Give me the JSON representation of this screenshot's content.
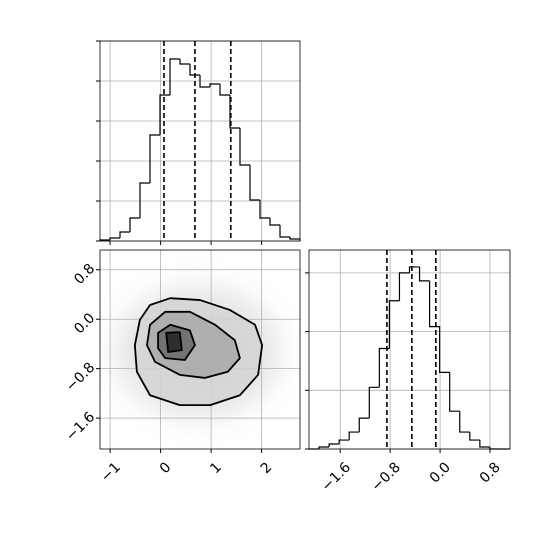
{
  "chart_data": [
    {
      "type": "histogram",
      "bins": [
        -1.2,
        -1.002,
        -0.804,
        -0.606,
        -0.408,
        -0.21,
        -0.012,
        0.186,
        0.384,
        0.582,
        0.78,
        0.978,
        1.176,
        1.374,
        1.572,
        1.77,
        1.968,
        2.166,
        2.364,
        2.562,
        2.76
      ],
      "counts": [
        1,
        3,
        9,
        23,
        58,
        106,
        146,
        182,
        177,
        166,
        154,
        157,
        146,
        113,
        76,
        41,
        23,
        16,
        4,
        2
      ],
      "quantiles": [
        0.067,
        0.68,
        1.39
      ],
      "xlim": [
        -1.2,
        2.76
      ],
      "ylim": [
        0,
        200
      ],
      "xticks": [
        -1,
        0,
        1,
        2
      ],
      "yticks": [
        0,
        40,
        80,
        120,
        160,
        200
      ],
      "tick_labels": false,
      "grid": true,
      "color": "#000000"
    },
    {
      "type": "contour",
      "xlim": [
        -1.2,
        2.76
      ],
      "ylim": [
        -2.1,
        1.12
      ],
      "xticks": [
        {
          "value": -1,
          "label": "−1"
        },
        0,
        1,
        2
      ],
      "yticks": [
        {
          "value": 0.8,
          "label": "0.8"
        },
        {
          "value": 0,
          "label": "0.0"
        },
        {
          "value": -0.8,
          "label": "−0.8"
        },
        {
          "value": -1.6,
          "label": "−1.6"
        }
      ],
      "tick_labels": true,
      "grid": true,
      "levels": [
        {
          "color": "#d4d4d4",
          "x": [
            -0.41,
            -0.21,
            0.19,
            0.78,
            1.37,
            1.87,
            2.01,
            1.93,
            1.57,
            0.98,
            0.38,
            -0.21,
            -0.47,
            -0.51
          ],
          "y": [
            -0.01,
            0.23,
            0.34,
            0.31,
            0.15,
            -0.09,
            -0.42,
            -0.9,
            -1.23,
            -1.39,
            -1.39,
            -1.23,
            -0.85,
            -0.42
          ]
        },
        {
          "color": "#a8a8a8",
          "x": [
            -0.21,
            0.09,
            0.58,
            1.08,
            1.47,
            1.57,
            1.33,
            0.88,
            0.38,
            -0.11,
            -0.27
          ],
          "y": [
            -0.09,
            0.12,
            0.12,
            -0.09,
            -0.34,
            -0.63,
            -0.85,
            -0.95,
            -0.9,
            -0.69,
            -0.42
          ]
        },
        {
          "color": "#686868",
          "x": [
            -0.05,
            0.19,
            0.58,
            0.68,
            0.48,
            0.09,
            -0.05
          ],
          "y": [
            -0.22,
            -0.09,
            -0.18,
            -0.42,
            -0.66,
            -0.63,
            -0.47
          ]
        },
        {
          "color": "#222222",
          "x": [
            0.11,
            0.38,
            0.42,
            0.15
          ],
          "y": [
            -0.22,
            -0.21,
            -0.5,
            -0.53
          ]
        }
      ]
    },
    {
      "type": "histogram",
      "bins": [
        -2.1,
        -1.939,
        -1.778,
        -1.617,
        -1.456,
        -1.295,
        -1.134,
        -0.973,
        -0.812,
        -0.651,
        -0.49,
        -0.329,
        -0.168,
        -0.007,
        0.154,
        0.315,
        0.476,
        0.637,
        0.798,
        0.959,
        1.12
      ],
      "counts": [
        0,
        2,
        5,
        9,
        17,
        31,
        62,
        101,
        149,
        177,
        183,
        169,
        123,
        77,
        38,
        17,
        9,
        2,
        0,
        0
      ],
      "quantiles": [
        -0.852,
        -0.452,
        -0.068
      ],
      "xlim": [
        -2.1,
        1.12
      ],
      "ylim": [
        0,
        200
      ],
      "xticks": [
        {
          "value": -1.6,
          "label": "−1.6"
        },
        {
          "value": -0.8,
          "label": "−0.8"
        },
        {
          "value": 0,
          "label": "0.0"
        },
        {
          "value": 0.8,
          "label": "0.8"
        }
      ],
      "yticks": [
        0,
        59,
        118,
        177
      ],
      "tick_labels": true,
      "grid": true,
      "color": "#000000"
    }
  ]
}
